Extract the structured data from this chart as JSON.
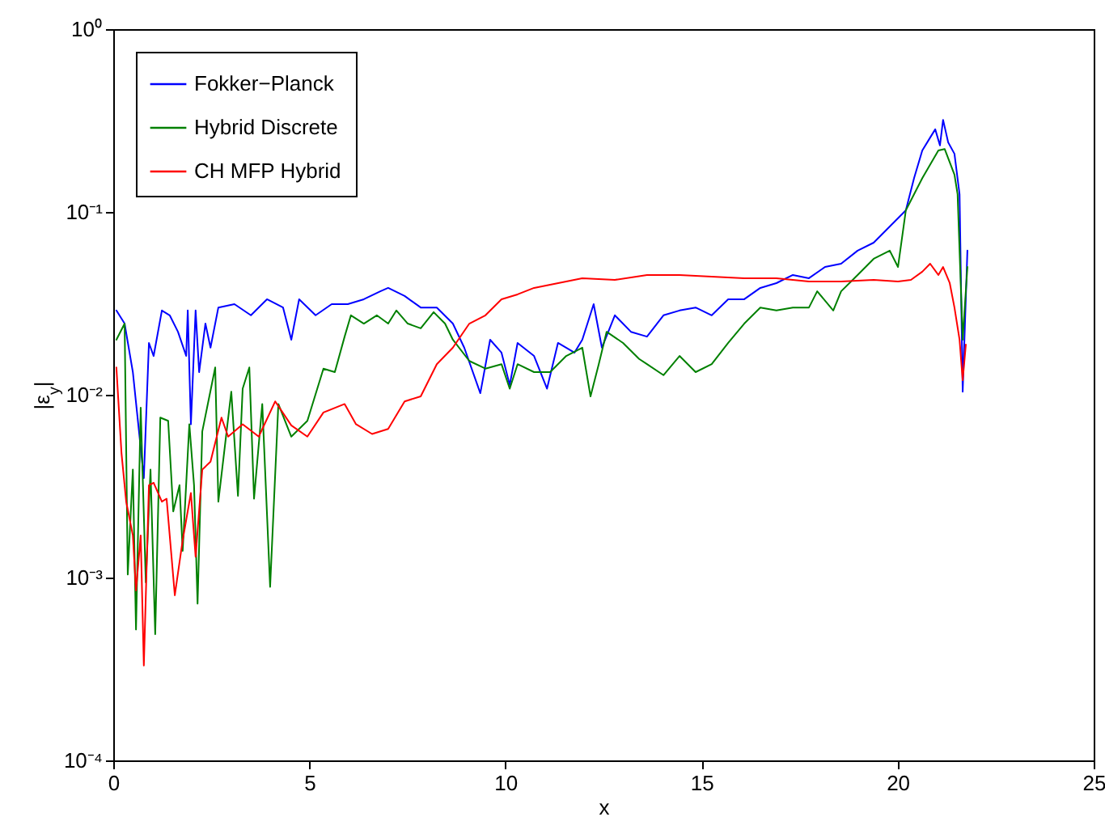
{
  "chart_data": {
    "type": "line",
    "xlabel": "x",
    "ylabel": "|ε$_{y}$|",
    "log": "y",
    "legend": "top left",
    "line_style": "solid",
    "marker": "none",
    "grid": false,
    "xlim": [
      0,
      25
    ],
    "xticks": [
      0,
      5,
      10,
      15,
      20,
      25
    ],
    "ylim": [
      0.0001,
      1
    ],
    "yticks": [
      {
        "value": 0.0001,
        "label": "10⁻⁴"
      },
      {
        "value": 0.001,
        "label": "10⁻³"
      },
      {
        "value": 0.01,
        "label": "10⁻²"
      },
      {
        "value": 0.1,
        "label": "10⁻¹"
      },
      {
        "value": 1,
        "label": "10⁰"
      }
    ],
    "series": [
      {
        "name": "Fokker−Planck",
        "color": "#0000ff",
        "x": [
          0.08,
          0.29,
          0.5,
          0.78,
          0.91,
          1.03,
          1.24,
          1.44,
          1.65,
          1.86,
          1.9,
          1.98,
          2.1,
          2.19,
          2.35,
          2.48,
          2.68,
          3.09,
          3.51,
          3.92,
          4.33,
          4.54,
          4.74,
          5.16,
          5.57,
          5.98,
          6.39,
          6.81,
          7.01,
          7.43,
          7.84,
          8.25,
          8.66,
          8.95,
          9.36,
          9.61,
          9.9,
          10.11,
          10.31,
          10.73,
          11.06,
          11.34,
          11.76,
          11.96,
          12.25,
          12.46,
          12.79,
          13.2,
          13.61,
          14.03,
          14.44,
          14.85,
          15.26,
          15.68,
          16.09,
          16.5,
          16.91,
          17.33,
          17.74,
          18.15,
          18.56,
          18.98,
          19.39,
          19.8,
          20.21,
          20.42,
          20.63,
          20.83,
          20.96,
          21.08,
          21.16,
          21.29,
          21.45,
          21.58,
          21.66,
          21.78
        ],
        "values": [
          0.0289,
          0.0245,
          0.0133,
          0.0035,
          0.0192,
          0.0163,
          0.0289,
          0.0272,
          0.0221,
          0.0163,
          0.0289,
          0.0069,
          0.0289,
          0.0133,
          0.0245,
          0.0181,
          0.03,
          0.0313,
          0.0272,
          0.0333,
          0.03,
          0.02,
          0.0333,
          0.0272,
          0.0313,
          0.0313,
          0.0333,
          0.0368,
          0.0384,
          0.0347,
          0.03,
          0.03,
          0.0245,
          0.0181,
          0.0102,
          0.02,
          0.017,
          0.0113,
          0.0192,
          0.0163,
          0.0108,
          0.0192,
          0.017,
          0.02,
          0.0313,
          0.0181,
          0.0272,
          0.0221,
          0.0208,
          0.0272,
          0.0289,
          0.03,
          0.0272,
          0.0333,
          0.0333,
          0.0384,
          0.0408,
          0.0452,
          0.0434,
          0.05,
          0.0521,
          0.0614,
          0.0679,
          0.0832,
          0.102,
          0.153,
          0.217,
          0.255,
          0.283,
          0.231,
          0.319,
          0.24,
          0.208,
          0.125,
          0.0104,
          0.0614
        ]
      },
      {
        "name": "Hybrid Discrete",
        "color": "#008000",
        "x": [
          0.08,
          0.29,
          0.37,
          0.5,
          0.58,
          0.7,
          0.83,
          0.95,
          1.07,
          1.2,
          1.4,
          1.53,
          1.69,
          1.77,
          1.94,
          2.06,
          2.15,
          2.27,
          2.6,
          2.68,
          3.01,
          3.18,
          3.3,
          3.47,
          3.59,
          3.8,
          4.0,
          4.21,
          4.54,
          4.95,
          5.36,
          5.65,
          5.9,
          6.06,
          6.39,
          6.72,
          7.01,
          7.22,
          7.51,
          7.84,
          8.17,
          8.46,
          8.66,
          9.08,
          9.49,
          9.9,
          10.11,
          10.31,
          10.73,
          11.14,
          11.55,
          11.96,
          12.17,
          12.38,
          12.58,
          13.0,
          13.41,
          13.61,
          14.03,
          14.44,
          14.85,
          15.26,
          15.68,
          16.09,
          16.5,
          16.91,
          17.33,
          17.74,
          17.95,
          18.36,
          18.56,
          18.98,
          19.39,
          19.8,
          20.01,
          20.21,
          20.63,
          21.04,
          21.2,
          21.45,
          21.53,
          21.66,
          21.78
        ],
        "values": [
          0.02,
          0.0245,
          0.00104,
          0.0039,
          0.00052,
          0.0085,
          0.00094,
          0.0039,
          0.00049,
          0.0075,
          0.0072,
          0.0023,
          0.0032,
          0.0014,
          0.0069,
          0.0032,
          0.00072,
          0.0063,
          0.0141,
          0.0026,
          0.0104,
          0.0028,
          0.0108,
          0.0141,
          0.0027,
          0.0089,
          0.00089,
          0.0089,
          0.0059,
          0.0072,
          0.0139,
          0.0133,
          0.0208,
          0.0272,
          0.0245,
          0.0272,
          0.0245,
          0.0289,
          0.0245,
          0.0231,
          0.0283,
          0.0245,
          0.02,
          0.0153,
          0.0139,
          0.0147,
          0.0108,
          0.0147,
          0.0133,
          0.0133,
          0.0163,
          0.0181,
          0.0098,
          0.0147,
          0.0221,
          0.0192,
          0.0157,
          0.0147,
          0.0128,
          0.0163,
          0.0133,
          0.0147,
          0.0192,
          0.0245,
          0.03,
          0.0289,
          0.03,
          0.03,
          0.0368,
          0.0289,
          0.0368,
          0.0452,
          0.0554,
          0.0614,
          0.05,
          0.102,
          0.153,
          0.217,
          0.221,
          0.16,
          0.125,
          0.02,
          0.05
        ]
      },
      {
        "name": "CH MFP Hybrid",
        "color": "#ff0000",
        "x": [
          0.08,
          0.21,
          0.33,
          0.5,
          0.58,
          0.7,
          0.78,
          0.91,
          1.03,
          1.24,
          1.36,
          1.57,
          1.77,
          1.98,
          2.1,
          2.27,
          2.48,
          2.76,
          2.93,
          3.3,
          3.71,
          4.13,
          4.54,
          4.95,
          5.36,
          5.9,
          6.19,
          6.6,
          7.01,
          7.43,
          7.84,
          8.25,
          8.66,
          9.08,
          9.49,
          9.9,
          10.31,
          10.73,
          11.14,
          11.55,
          11.96,
          12.79,
          13.61,
          14.44,
          15.26,
          16.09,
          16.91,
          17.74,
          18.56,
          19.39,
          20.01,
          20.34,
          20.63,
          20.83,
          21.04,
          21.16,
          21.33,
          21.45,
          21.58,
          21.66,
          21.74
        ],
        "values": [
          0.0141,
          0.0048,
          0.0026,
          0.0017,
          0.00085,
          0.0017,
          0.00033,
          0.0032,
          0.0033,
          0.0026,
          0.0027,
          0.0008,
          0.0016,
          0.0029,
          0.0013,
          0.0039,
          0.0043,
          0.0075,
          0.0059,
          0.0069,
          0.0059,
          0.0092,
          0.0068,
          0.0059,
          0.008,
          0.0089,
          0.0069,
          0.0061,
          0.0065,
          0.0092,
          0.0098,
          0.0147,
          0.0181,
          0.0245,
          0.0272,
          0.0333,
          0.0354,
          0.0384,
          0.04,
          0.0416,
          0.0434,
          0.0425,
          0.0452,
          0.0452,
          0.0443,
          0.0434,
          0.0434,
          0.0416,
          0.0416,
          0.0425,
          0.0416,
          0.0425,
          0.0471,
          0.0521,
          0.0452,
          0.05,
          0.0408,
          0.03,
          0.02,
          0.012,
          0.0188
        ]
      }
    ]
  }
}
